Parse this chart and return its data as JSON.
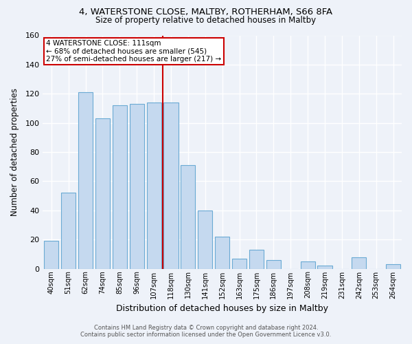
{
  "title1": "4, WATERSTONE CLOSE, MALTBY, ROTHERHAM, S66 8FA",
  "title2": "Size of property relative to detached houses in Maltby",
  "xlabel": "Distribution of detached houses by size in Maltby",
  "ylabel": "Number of detached properties",
  "categories": [
    "40sqm",
    "51sqm",
    "62sqm",
    "74sqm",
    "85sqm",
    "96sqm",
    "107sqm",
    "118sqm",
    "130sqm",
    "141sqm",
    "152sqm",
    "163sqm",
    "175sqm",
    "186sqm",
    "197sqm",
    "208sqm",
    "219sqm",
    "231sqm",
    "242sqm",
    "253sqm",
    "264sqm"
  ],
  "values": [
    19,
    52,
    121,
    103,
    112,
    113,
    114,
    114,
    71,
    40,
    22,
    7,
    13,
    6,
    0,
    5,
    2,
    0,
    8,
    0,
    3
  ],
  "bar_color": "#c5d9ef",
  "bar_edge_color": "#6aaad4",
  "marker_line_color": "#cc0000",
  "annotation_box_edge_color": "#cc0000",
  "annotation_box_face_color": "#ffffff",
  "marker_line_label": "4 WATERSTONE CLOSE: 111sqm",
  "annotation_line1": "← 68% of detached houses are smaller (545)",
  "annotation_line2": "27% of semi-detached houses are larger (217) →",
  "ylim": [
    0,
    160
  ],
  "yticks": [
    0,
    20,
    40,
    60,
    80,
    100,
    120,
    140,
    160
  ],
  "footer_line1": "Contains HM Land Registry data © Crown copyright and database right 2024.",
  "footer_line2": "Contains public sector information licensed under the Open Government Licence v3.0.",
  "background_color": "#eef2f9"
}
